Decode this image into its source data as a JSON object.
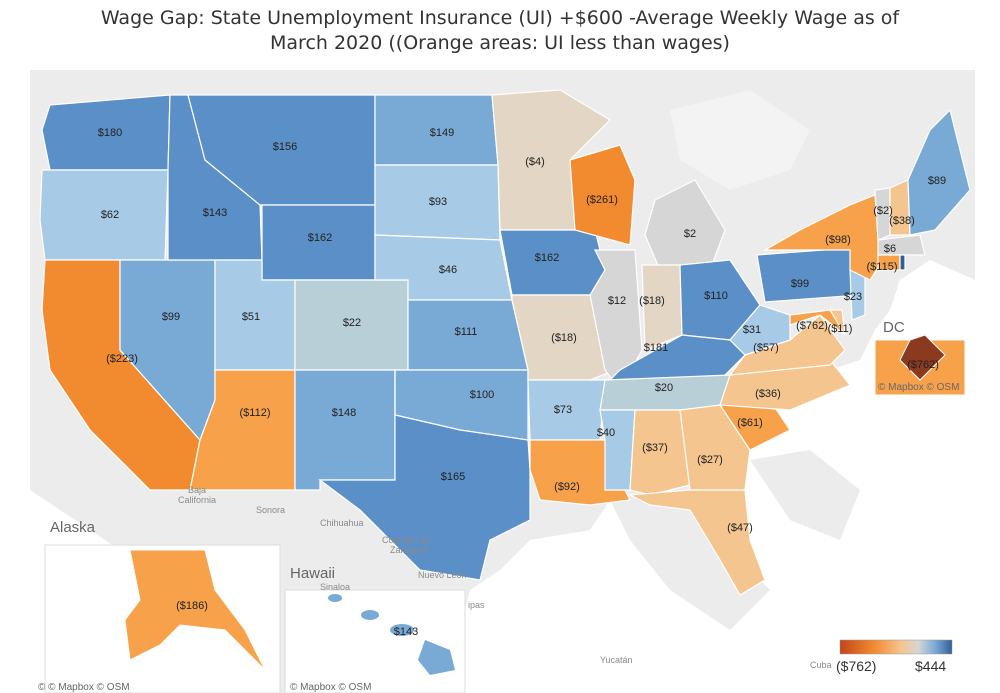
{
  "title_line1": "Wage Gap: State Unemployment Insurance (UI) +$600 -Average Weekly Wage  as of",
  "title_line2": "March 2020 ((Orange areas: UI less than wages)",
  "colors": {
    "deep_blue": "#5b8fc7",
    "mid_blue": "#79aad6",
    "light_blue": "#a7cbe6",
    "gray_blue": "#b8cfd8",
    "beige": "#e3d6c4",
    "light_gray": "#d6d6d6",
    "light_orange": "#f5c58f",
    "orange": "#f7a24b",
    "deep_orange": "#f28a30",
    "dark_red": "#8b3a1f",
    "water": "#ffffff",
    "land": "#e9e9e9"
  },
  "states": {
    "WA": "$180",
    "OR": "$62",
    "ID": "$143",
    "MT": "$156",
    "WY": "$162",
    "ND": "$149",
    "SD": "$93",
    "NE": "$46",
    "MN": "($4)",
    "WI": "($261)",
    "MI": "$2",
    "IA": "$162",
    "IL": "$12",
    "IN": "($18)",
    "OH": "$110",
    "PA": "$99",
    "NY": "($98)",
    "VT": "($2)",
    "NH": "($38)",
    "ME": "$89",
    "MA": "$6",
    "CT": "($115)",
    "NJ": "$23",
    "DE": "($11)",
    "MD": "($762)",
    "WV": "$31",
    "VA": "($57)",
    "KY": "$181",
    "MO": "($18)",
    "KS": "$111",
    "CO": "$22",
    "UT": "$51",
    "NV": "$99",
    "CA": "($223)",
    "AZ": "($112)",
    "NM": "$148",
    "OK": "$100",
    "TX": "$165",
    "AR": "$73",
    "LA": "($92)",
    "MS": "$40",
    "AL": "($37)",
    "GA": "($27)",
    "TN": "$20",
    "NC": "($36)",
    "SC": "($61)",
    "FL": "($47)",
    "AK": "($186)",
    "HI": "$143"
  },
  "dc": {
    "label": "DC",
    "value": "($762)",
    "credit": "© Mapbox © OSM"
  },
  "places": {
    "baja": "Baja",
    "baja2": "California",
    "sonora": "Sonora",
    "chihuahua": "Chihuahua",
    "coahuila": "Coahuila de",
    "coahuila2": "Zaragoza",
    "nuevo_leon": "Nuevo León",
    "sinaloa": "Sinaloa",
    "tamaulipas": "ipas",
    "yucatan": "Yucatán",
    "cuba": "Cuba"
  },
  "insets": {
    "alaska": "Alaska",
    "hawaii": "Hawaii",
    "alaska_credit": "© © Mapbox © OSM",
    "hawaii_credit": "© Mapbox © OSM"
  },
  "legend": {
    "min_label": "($762)",
    "max_label": "$444",
    "min_value": -762,
    "max_value": 444
  }
}
